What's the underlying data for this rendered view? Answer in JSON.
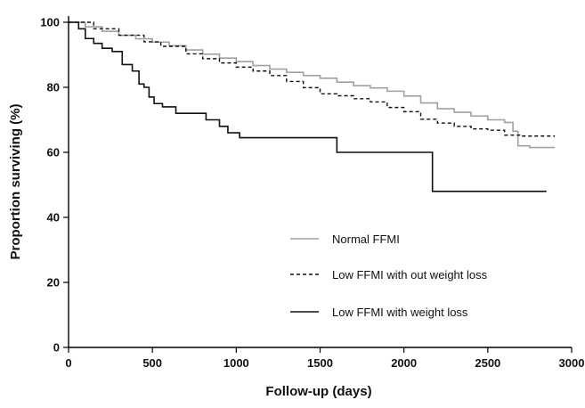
{
  "chart_data": {
    "type": "line",
    "xlabel": "Follow-up (days)",
    "ylabel": "Proportion surviving (%)",
    "xlim": [
      0,
      3000
    ],
    "ylim": [
      0,
      100
    ],
    "x_ticks": [
      0,
      500,
      1000,
      1500,
      2000,
      2500,
      3000
    ],
    "y_ticks": [
      0,
      20,
      40,
      60,
      80,
      100
    ],
    "x_tick_labels": [
      "0",
      "500",
      "1000",
      "1500",
      "2000",
      "2500",
      "3000"
    ],
    "y_tick_labels": [
      "0",
      "20",
      "40",
      "60",
      "80",
      "100"
    ],
    "grid": false,
    "legend_position": "center-right",
    "series": [
      {
        "name": "Normal FFMI",
        "color": "#a0a0a0",
        "dash": "solid",
        "x": [
          0,
          100,
          200,
          300,
          400,
          500,
          600,
          700,
          800,
          900,
          1000,
          1100,
          1200,
          1300,
          1400,
          1500,
          1600,
          1700,
          1800,
          1900,
          2000,
          2100,
          2200,
          2300,
          2400,
          2500,
          2600,
          2650,
          2680,
          2750,
          2900
        ],
        "y": [
          100,
          98.6,
          97.2,
          96.0,
          94.9,
          93.9,
          92.8,
          91.5,
          90.2,
          89.0,
          87.9,
          86.7,
          85.6,
          84.6,
          83.6,
          82.8,
          81.6,
          80.5,
          79.8,
          78.8,
          77.3,
          75.2,
          73.4,
          72.3,
          71.2,
          70.0,
          69.2,
          66.5,
          62.0,
          61.5,
          61.5
        ]
      },
      {
        "name": "Low FFMI with out weight loss",
        "color": "#111111",
        "dash": "dashed",
        "x": [
          0,
          80,
          150,
          300,
          450,
          550,
          700,
          800,
          900,
          1000,
          1100,
          1200,
          1300,
          1400,
          1500,
          1600,
          1700,
          1800,
          1900,
          2000,
          2100,
          2200,
          2300,
          2400,
          2500,
          2600,
          2700,
          2800,
          2900
        ],
        "y": [
          100,
          100,
          98.0,
          96.0,
          94.0,
          92.6,
          90.3,
          88.8,
          87.5,
          86.2,
          85.0,
          83.6,
          81.8,
          79.9,
          78.0,
          77.4,
          76.5,
          75.5,
          73.8,
          72.5,
          70.2,
          69.0,
          68.0,
          67.2,
          66.8,
          65.3,
          65.0,
          65.0,
          65.0
        ]
      },
      {
        "name": "Low FFMI with weight loss",
        "color": "#111111",
        "dash": "solid",
        "x": [
          0,
          60,
          100,
          150,
          200,
          260,
          320,
          380,
          420,
          450,
          480,
          510,
          560,
          640,
          700,
          820,
          900,
          950,
          1020,
          1100,
          1600,
          1700,
          2000,
          2170,
          2300,
          2850
        ],
        "y": [
          100,
          98.0,
          95.0,
          93.5,
          92.0,
          91.0,
          87.0,
          85.0,
          81.0,
          80.0,
          77.0,
          75.0,
          74.0,
          72.0,
          72.0,
          70.0,
          68.0,
          66.0,
          64.5,
          64.5,
          60.0,
          60.0,
          60.0,
          48.0,
          48.0,
          48.0
        ]
      }
    ]
  }
}
